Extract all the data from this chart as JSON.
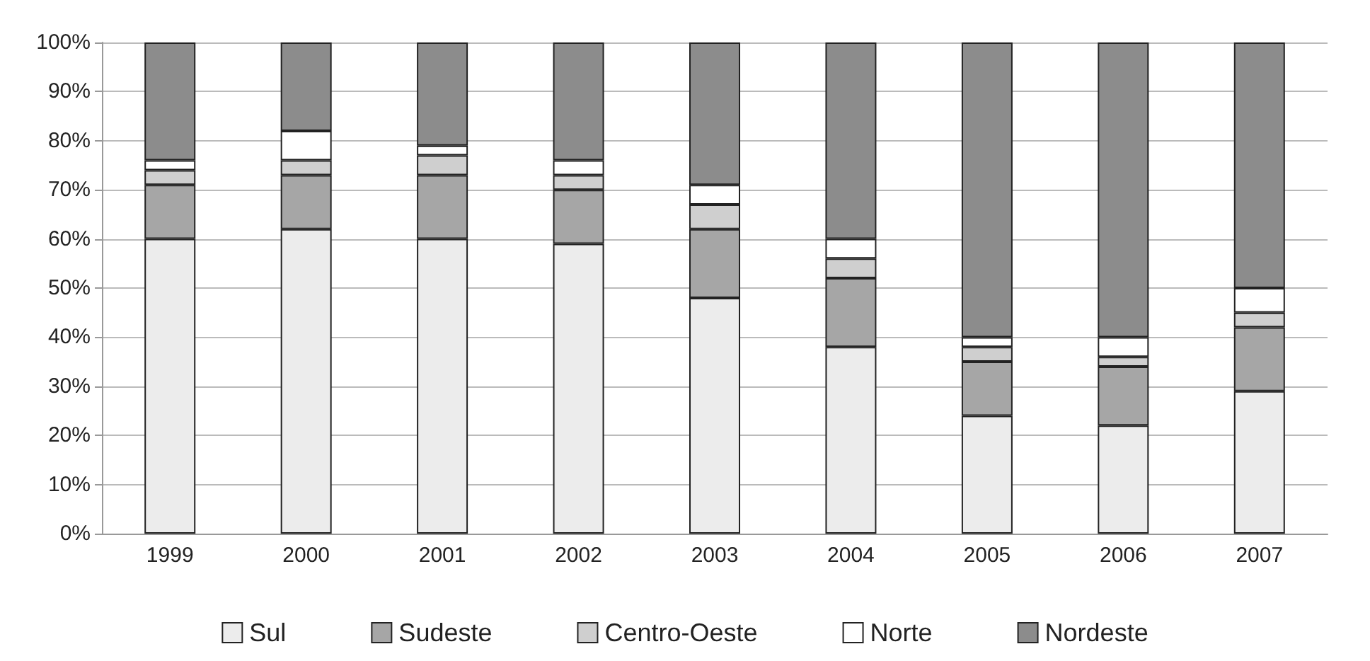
{
  "chart_data": {
    "type": "bar",
    "stacked": true,
    "categories": [
      "1999",
      "2000",
      "2001",
      "2002",
      "2003",
      "2004",
      "2005",
      "2006",
      "2007"
    ],
    "series": [
      {
        "name": "Sul",
        "color": "#ececec",
        "values": [
          60,
          62,
          60,
          59,
          48,
          38,
          24,
          22,
          29
        ]
      },
      {
        "name": "Sudeste",
        "color": "#a6a6a6",
        "values": [
          11,
          11,
          13,
          11,
          14,
          14,
          11,
          12,
          13
        ]
      },
      {
        "name": "Centro-Oeste",
        "color": "#cfcfcf",
        "values": [
          3,
          3,
          4,
          3,
          5,
          4,
          3,
          2,
          3
        ]
      },
      {
        "name": "Norte",
        "color": "#ffffff",
        "values": [
          2,
          6,
          2,
          3,
          4,
          4,
          2,
          4,
          5
        ]
      },
      {
        "name": "Nordeste",
        "color": "#8c8c8c",
        "values": [
          24,
          18,
          21,
          24,
          29,
          40,
          60,
          60,
          50
        ]
      }
    ],
    "ylim": [
      0,
      100
    ],
    "yticks": [
      {
        "value": 0,
        "label": "0%"
      },
      {
        "value": 10,
        "label": "10%"
      },
      {
        "value": 20,
        "label": "20%"
      },
      {
        "value": 30,
        "label": "30%"
      },
      {
        "value": 40,
        "label": "40%"
      },
      {
        "value": 50,
        "label": "50%"
      },
      {
        "value": 60,
        "label": "60%"
      },
      {
        "value": 70,
        "label": "70%"
      },
      {
        "value": 80,
        "label": "80%"
      },
      {
        "value": 90,
        "label": "90%"
      },
      {
        "value": 100,
        "label": "100%"
      }
    ],
    "grid": "y",
    "legend": "bottom"
  }
}
